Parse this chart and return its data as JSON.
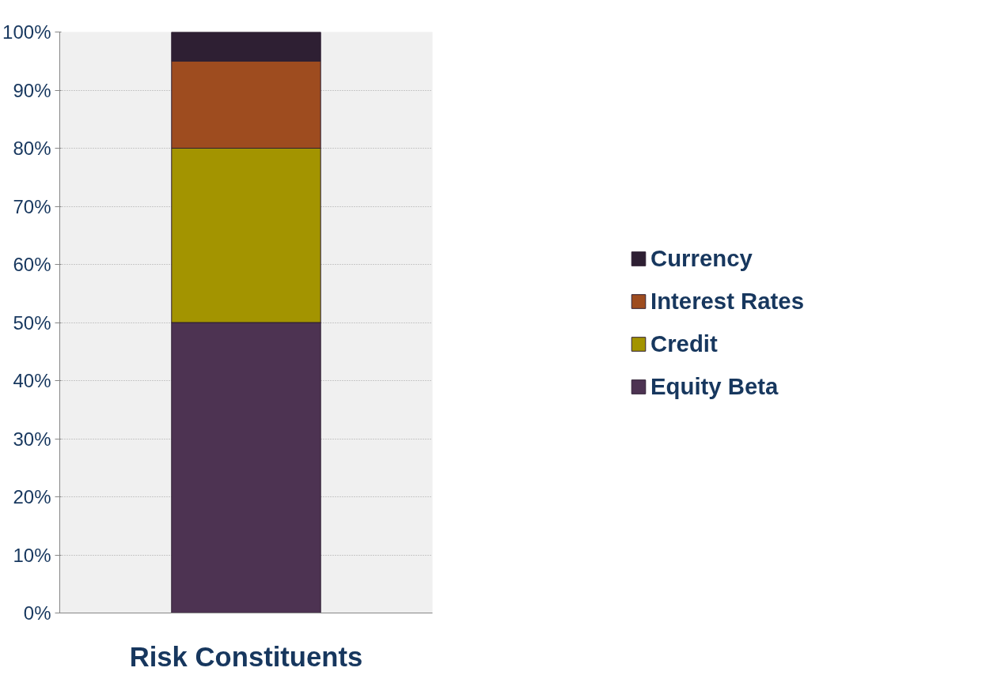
{
  "chart_data": {
    "type": "bar",
    "stacked": true,
    "categories": [
      "Risk Constituents"
    ],
    "series": [
      {
        "name": "Equity Beta",
        "color": "#4d3352",
        "values": [
          50
        ]
      },
      {
        "name": "Credit",
        "color": "#a39400",
        "values": [
          30
        ]
      },
      {
        "name": "Interest Rates",
        "color": "#9e4c1f",
        "values": [
          15
        ]
      },
      {
        "name": "Currency",
        "color": "#2e1f33",
        "values": [
          5
        ]
      }
    ],
    "ylim": [
      0,
      100
    ],
    "yticks": [
      {
        "value": 0,
        "label": "0%"
      },
      {
        "value": 10,
        "label": "10%"
      },
      {
        "value": 20,
        "label": "20%"
      },
      {
        "value": 30,
        "label": "30%"
      },
      {
        "value": 40,
        "label": "40%"
      },
      {
        "value": 50,
        "label": "50%"
      },
      {
        "value": 60,
        "label": "60%"
      },
      {
        "value": 70,
        "label": "70%"
      },
      {
        "value": 80,
        "label": "80%"
      },
      {
        "value": 90,
        "label": "90%"
      },
      {
        "value": 100,
        "label": "100%"
      }
    ],
    "grid": "y",
    "legend": "right"
  }
}
